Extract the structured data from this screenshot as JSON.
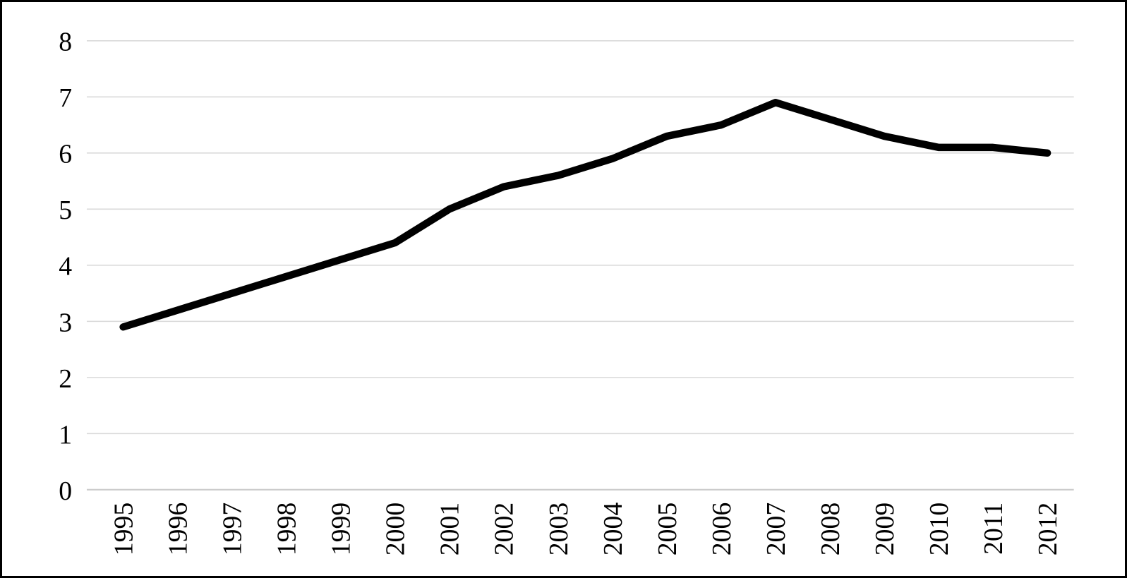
{
  "chart_data": {
    "type": "line",
    "title": "",
    "xlabel": "",
    "ylabel": "",
    "categories": [
      "1995",
      "1996",
      "1997",
      "1998",
      "1999",
      "2000",
      "2001",
      "2002",
      "2003",
      "2004",
      "2005",
      "2006",
      "2007",
      "2008",
      "2009",
      "2010",
      "2011",
      "2012"
    ],
    "series": [
      {
        "name": "value",
        "values": [
          2.9,
          3.2,
          3.5,
          3.8,
          4.1,
          4.4,
          5.0,
          5.4,
          5.6,
          5.9,
          6.3,
          6.5,
          6.9,
          6.6,
          6.3,
          6.1,
          6.1,
          6.0
        ]
      }
    ],
    "ylim": [
      0,
      8
    ],
    "yticks": [
      0,
      1,
      2,
      3,
      4,
      5,
      6,
      7,
      8
    ],
    "grid": "horizontal",
    "legend": "none",
    "x_tick_rotation_degrees": -90,
    "colors": {
      "line": "#000000",
      "gridline": "#d9d9d9",
      "zero_line": "#cccccc",
      "tick_label": "#000000",
      "frame_border": "#000000",
      "background": "#ffffff"
    }
  }
}
